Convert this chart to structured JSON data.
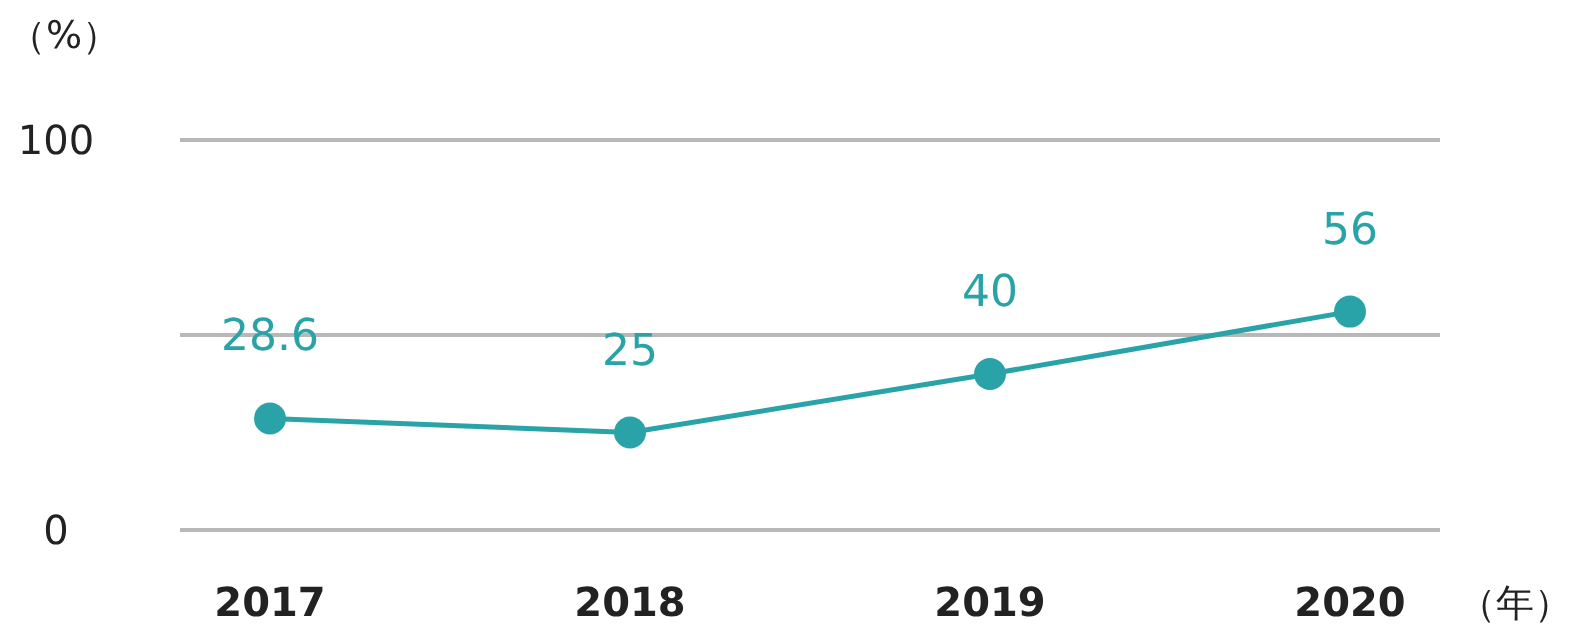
{
  "chart_data": {
    "type": "line",
    "ylabel": "（%）",
    "xlabel": "（年）",
    "categories": [
      "2017",
      "2018",
      "2019",
      "2020"
    ],
    "series": [
      {
        "color": "#2aa3a8",
        "values": [
          28.6,
          25,
          40,
          56
        ]
      }
    ],
    "ylim": [
      0,
      100
    ],
    "yticks": [
      0,
      {
        "value": 50,
        "label": null
      },
      100
    ],
    "grid": "y",
    "marker": "circle",
    "line_style": "solid",
    "data_labels": true
  }
}
